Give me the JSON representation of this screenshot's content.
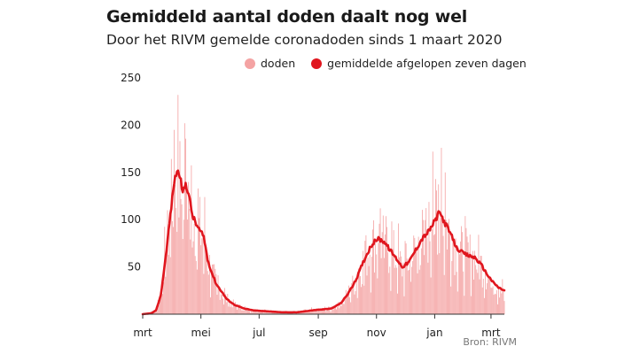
{
  "header": {
    "title": "Gemiddeld aantal doden daalt nog wel",
    "subtitle": "Door het RIVM gemelde coronadoden sinds 1 maart 2020"
  },
  "legend": {
    "bars_label": "doden",
    "line_label": "gemiddelde afgelopen zeven dagen"
  },
  "source": "Bron: RIVM",
  "colors": {
    "bars": "#f4a3a3",
    "line": "#e0161e",
    "axis": "#333333",
    "text": "#1a1a1a"
  },
  "chart_data": {
    "type": "bar",
    "x_start": "2020-03-01",
    "x_end": "2021-03-15",
    "ylim": [
      0,
      250
    ],
    "yticks": [
      50,
      100,
      150,
      200,
      250
    ],
    "xticks": [
      {
        "label": "mrt",
        "date": "2020-03-01"
      },
      {
        "label": "mei",
        "date": "2020-05-01"
      },
      {
        "label": "jul",
        "date": "2020-07-01"
      },
      {
        "label": "sep",
        "date": "2020-09-01"
      },
      {
        "label": "nov",
        "date": "2020-11-01"
      },
      {
        "label": "jan",
        "date": "2021-01-01"
      },
      {
        "label": "mrt",
        "date": "2021-03-01"
      }
    ],
    "grid": false,
    "legend_position": "top-right",
    "series": [
      {
        "name": "gemiddelde afgelopen zeven dagen",
        "type": "line",
        "points": [
          [
            "2020-03-01",
            0
          ],
          [
            "2020-03-10",
            1
          ],
          [
            "2020-03-15",
            4
          ],
          [
            "2020-03-20",
            20
          ],
          [
            "2020-03-25",
            60
          ],
          [
            "2020-03-30",
            105
          ],
          [
            "2020-04-03",
            140
          ],
          [
            "2020-04-06",
            152
          ],
          [
            "2020-04-09",
            147
          ],
          [
            "2020-04-12",
            128
          ],
          [
            "2020-04-15",
            138
          ],
          [
            "2020-04-18",
            128
          ],
          [
            "2020-04-22",
            105
          ],
          [
            "2020-04-26",
            95
          ],
          [
            "2020-04-30",
            88
          ],
          [
            "2020-05-04",
            82
          ],
          [
            "2020-05-08",
            58
          ],
          [
            "2020-05-12",
            45
          ],
          [
            "2020-05-17",
            32
          ],
          [
            "2020-05-22",
            25
          ],
          [
            "2020-05-28",
            16
          ],
          [
            "2020-06-05",
            10
          ],
          [
            "2020-06-15",
            6
          ],
          [
            "2020-06-25",
            4
          ],
          [
            "2020-07-10",
            3
          ],
          [
            "2020-07-25",
            2
          ],
          [
            "2020-08-10",
            2
          ],
          [
            "2020-08-25",
            4
          ],
          [
            "2020-09-05",
            5
          ],
          [
            "2020-09-15",
            6
          ],
          [
            "2020-09-25",
            12
          ],
          [
            "2020-10-01",
            20
          ],
          [
            "2020-10-10",
            35
          ],
          [
            "2020-10-18",
            55
          ],
          [
            "2020-10-26",
            72
          ],
          [
            "2020-11-02",
            80
          ],
          [
            "2020-11-09",
            77
          ],
          [
            "2020-11-15",
            68
          ],
          [
            "2020-11-21",
            60
          ],
          [
            "2020-11-28",
            50
          ],
          [
            "2020-12-05",
            55
          ],
          [
            "2020-12-12",
            68
          ],
          [
            "2020-12-19",
            80
          ],
          [
            "2020-12-26",
            88
          ],
          [
            "2021-01-02",
            100
          ],
          [
            "2021-01-06",
            108
          ],
          [
            "2021-01-12",
            96
          ],
          [
            "2021-01-18",
            84
          ],
          [
            "2021-01-24",
            70
          ],
          [
            "2021-01-30",
            65
          ],
          [
            "2021-02-05",
            62
          ],
          [
            "2021-02-12",
            60
          ],
          [
            "2021-02-19",
            52
          ],
          [
            "2021-02-25",
            42
          ],
          [
            "2021-03-03",
            34
          ],
          [
            "2021-03-09",
            28
          ],
          [
            "2021-03-15",
            25
          ]
        ]
      },
      {
        "name": "doden",
        "type": "bar",
        "peaks": [
          [
            "2020-04-07",
            232
          ],
          [
            "2020-04-03",
            195
          ],
          [
            "2020-04-14",
            202
          ],
          [
            "2021-01-08",
            176
          ],
          [
            "2020-12-30",
            172
          ],
          [
            "2021-01-12",
            150
          ],
          [
            "2020-11-05",
            112
          ],
          [
            "2021-02-16",
            84
          ],
          [
            "2021-03-13",
            37
          ]
        ]
      }
    ]
  }
}
